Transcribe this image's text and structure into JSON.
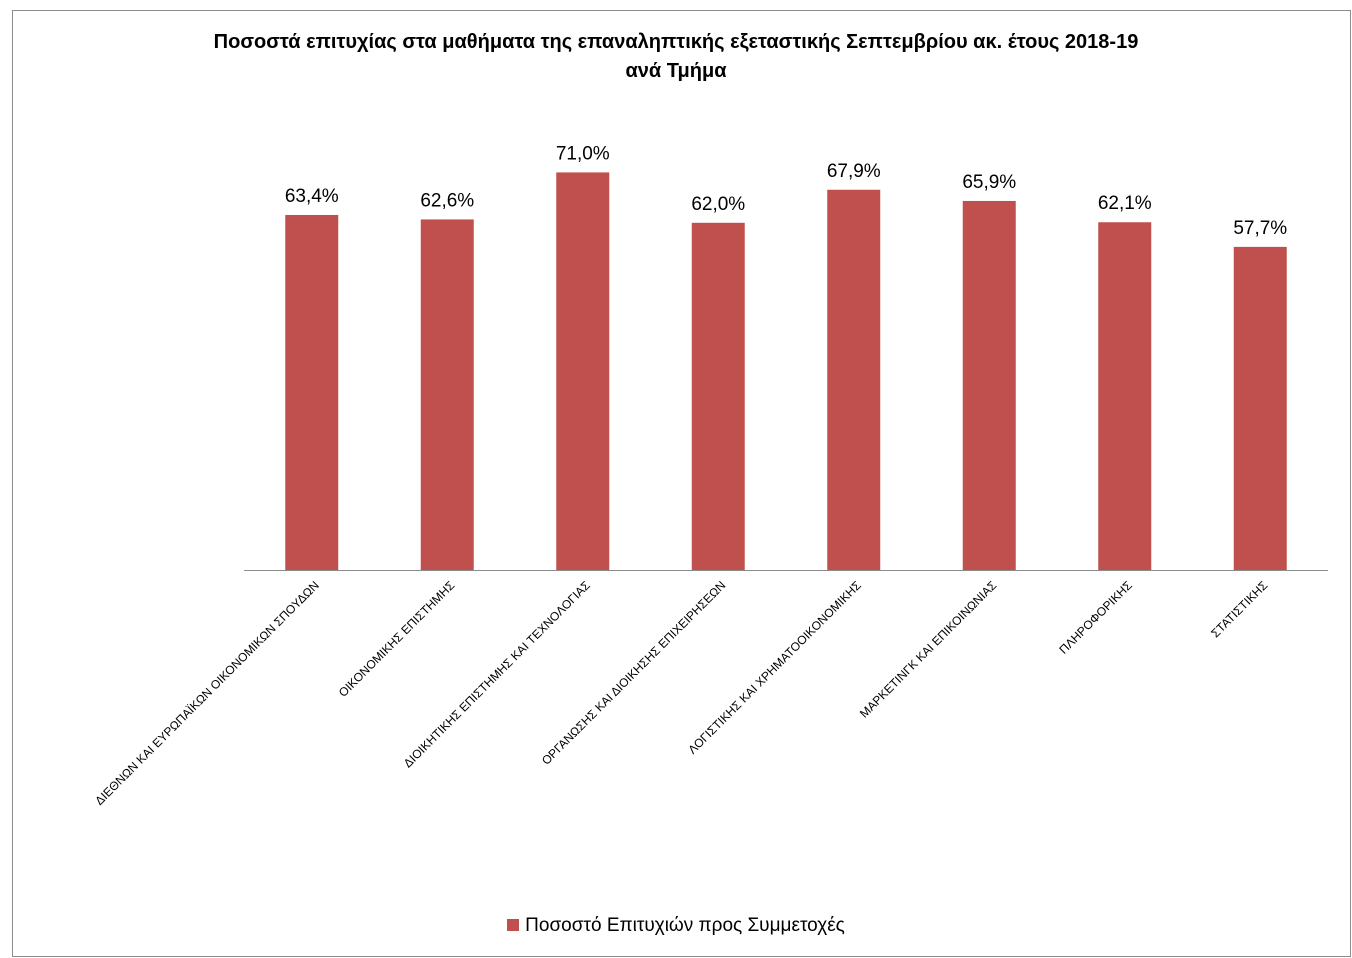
{
  "chart_data": {
    "type": "bar",
    "title": "Ποσοστά επιτυχίας στα μαθήματα της επαναληπτικής εξεταστικής Σεπτεμβρίου ακ. έτους 2018-19",
    "subtitle": "ανά Τμήμα",
    "categories": [
      "ΔΙΕΘΝΩΝ ΚΑΙ ΕΥΡΩΠΑΪΚΩΝ ΟΙΚΟΝΟΜΙΚΩΝ ΣΠΟΥΔΩΝ",
      "ΟΙΚΟΝΟΜΙΚΗΣ ΕΠΙΣΤΗΜΗΣ",
      "ΔΙΟΙΚΗΤΙΚΗΣ ΕΠΙΣΤΗΜΗΣ ΚΑΙ ΤΕΧΝΟΛΟΓΙΑΣ",
      "ΟΡΓΑΝΩΣΗΣ ΚΑΙ ΔΙΟΙΚΗΣΗΣ ΕΠΙΧΕΙΡΗΣΕΩΝ",
      "ΛΟΓΙΣΤΙΚΗΣ ΚΑΙ ΧΡΗΜΑΤΟΟΙΚΟΝΟΜΙΚΗΣ",
      "ΜΑΡΚΕΤΙΝΓΚ ΚΑΙ ΕΠΙΚΟΙΝΩΝΙΑΣ",
      "ΠΛΗΡΟΦΟΡΙΚΗΣ",
      "ΣΤΑΤΙΣΤΙΚΗΣ"
    ],
    "series": [
      {
        "name": "Ποσοστό Επιτυχιών προς Συμμετοχές",
        "values": [
          63.4,
          62.6,
          71.0,
          62.0,
          67.9,
          65.9,
          62.1,
          57.7
        ],
        "labels": [
          "63,4%",
          "62,6%",
          "71,0%",
          "62,0%",
          "67,9%",
          "65,9%",
          "62,1%",
          "57,7%"
        ],
        "color": "#c0504d"
      }
    ],
    "ylim": [
      0,
      72
    ],
    "grid": false,
    "legend_position": "bottom"
  }
}
